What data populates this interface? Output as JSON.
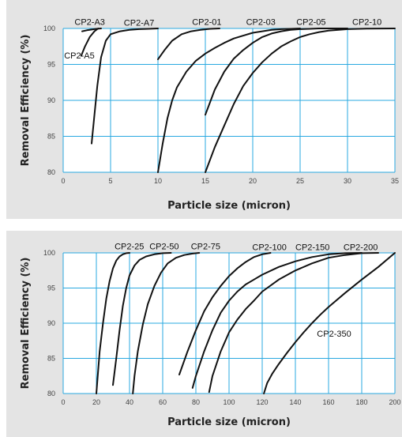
{
  "chart_data": [
    {
      "type": "line",
      "xlabel": "Particle size (micron)",
      "ylabel": "Removal Efficiency (%)",
      "xlim": [
        0,
        35
      ],
      "ylim": [
        80,
        100
      ],
      "xticks": [
        0,
        5,
        10,
        15,
        20,
        25,
        30,
        35
      ],
      "yticks": [
        80,
        85,
        90,
        95,
        100
      ],
      "grid": true,
      "series": [
        {
          "name": "CP2-A3",
          "x": [
            2,
            2.5,
            3,
            3.5,
            4
          ],
          "y": [
            99.6,
            99.75,
            99.85,
            99.95,
            100
          ]
        },
        {
          "name": "CP2-A5",
          "x": [
            1.9,
            2.3,
            2.8,
            3.3,
            3.7
          ],
          "y": [
            96.2,
            97.5,
            98.8,
            99.6,
            100
          ]
        },
        {
          "name": "CP2-A7",
          "x": [
            3,
            3.3,
            3.6,
            4,
            4.5,
            5,
            6,
            7,
            8,
            9,
            10
          ],
          "y": [
            84,
            88,
            92,
            96,
            98.3,
            99.2,
            99.6,
            99.8,
            99.9,
            99.95,
            100
          ]
        },
        {
          "name": "CP2-01",
          "x": [
            10,
            10.7,
            11.5,
            12.5,
            13.5,
            14.5,
            15.5,
            16.5
          ],
          "y": [
            95.7,
            97,
            98.3,
            99.2,
            99.6,
            99.8,
            99.95,
            100
          ]
        },
        {
          "name": "CP2-03",
          "x": [
            10,
            10.5,
            11,
            11.5,
            12,
            13,
            14,
            15,
            16,
            17,
            18,
            19,
            20,
            21,
            22,
            23,
            24,
            25
          ],
          "y": [
            80,
            84,
            87.5,
            90,
            91.8,
            94,
            95.5,
            96.5,
            97.3,
            98,
            98.6,
            99,
            99.4,
            99.6,
            99.8,
            99.9,
            99.95,
            100
          ]
        },
        {
          "name": "CP2-05",
          "x": [
            15,
            16,
            17,
            18,
            19,
            20,
            21,
            22,
            23,
            24,
            25,
            26,
            27,
            28,
            30
          ],
          "y": [
            88,
            91.5,
            94,
            95.8,
            97,
            98,
            98.8,
            99.3,
            99.6,
            99.8,
            99.9,
            99.95,
            100,
            100,
            100
          ]
        },
        {
          "name": "CP2-10",
          "x": [
            15,
            16,
            17,
            18,
            19,
            20,
            21,
            22,
            23,
            24,
            25,
            26,
            27,
            28,
            30,
            32,
            35
          ],
          "y": [
            80,
            83.5,
            86.5,
            89.5,
            92,
            93.8,
            95.3,
            96.5,
            97.5,
            98.2,
            98.8,
            99.2,
            99.5,
            99.7,
            99.9,
            99.97,
            100
          ]
        }
      ],
      "labels": [
        {
          "text": "CP2-A3",
          "x": 1.2,
          "y": 100.5
        },
        {
          "text": "CP2-A7",
          "x": 6.4,
          "y": 100.4
        },
        {
          "text": "CP2-A5",
          "x": 0.1,
          "y": 95.8
        },
        {
          "text": "CP2-01",
          "x": 13.6,
          "y": 100.5
        },
        {
          "text": "CP2-03",
          "x": 19.3,
          "y": 100.5
        },
        {
          "text": "CP2-05",
          "x": 24.6,
          "y": 100.5
        },
        {
          "text": "CP2-10",
          "x": 30.5,
          "y": 100.5
        }
      ]
    },
    {
      "type": "line",
      "xlabel": "Particle size (micron)",
      "ylabel": "Removal Efficiency (%)",
      "xlim": [
        0,
        200
      ],
      "ylim": [
        80,
        100
      ],
      "xticks": [
        0,
        20,
        40,
        60,
        80,
        100,
        120,
        140,
        160,
        180,
        200
      ],
      "yticks": [
        80,
        85,
        90,
        95,
        100
      ],
      "grid": true,
      "series": [
        {
          "name": "CP2-25",
          "x": [
            20,
            21,
            22,
            24,
            26,
            28,
            30,
            32,
            34,
            36,
            38,
            40
          ],
          "y": [
            80,
            83,
            86,
            90,
            93.5,
            96,
            97.8,
            98.9,
            99.5,
            99.8,
            99.95,
            100
          ]
        },
        {
          "name": "CP2-50",
          "x": [
            30,
            32,
            34,
            36,
            38,
            40,
            43,
            46,
            50,
            55,
            60,
            65
          ],
          "y": [
            81.2,
            85,
            89,
            92.5,
            95,
            96.8,
            98.2,
            99,
            99.5,
            99.8,
            99.95,
            100
          ]
        },
        {
          "name": "CP2-75",
          "x": [
            42,
            43,
            45,
            48,
            51,
            55,
            59,
            63,
            68,
            73,
            78,
            82
          ],
          "y": [
            80,
            82.5,
            86,
            89.8,
            92.7,
            95.3,
            97.2,
            98.5,
            99.3,
            99.7,
            99.9,
            100
          ]
        },
        {
          "name": "CP2-100",
          "x": [
            70,
            75,
            80,
            85,
            90,
            95,
            100,
            105,
            110,
            115,
            120,
            125
          ],
          "y": [
            82.7,
            86,
            89,
            91.7,
            93.7,
            95.3,
            96.7,
            97.8,
            98.7,
            99.4,
            99.8,
            100
          ]
        },
        {
          "name": "CP2-150",
          "x": [
            78,
            80,
            85,
            90,
            95,
            100,
            105,
            110,
            115,
            120,
            130,
            140,
            150,
            160,
            170,
            180
          ],
          "y": [
            80.8,
            82.5,
            86,
            89,
            91.5,
            93.2,
            94.5,
            95.5,
            96.2,
            96.9,
            98,
            98.8,
            99.4,
            99.8,
            99.95,
            100
          ]
        },
        {
          "name": "CP2-200",
          "x": [
            88,
            90,
            95,
            100,
            105,
            110,
            115,
            120,
            130,
            140,
            150,
            160,
            170,
            180,
            190
          ],
          "y": [
            80.2,
            82.5,
            86,
            88.7,
            90.5,
            92,
            93.2,
            94.5,
            96.2,
            97.5,
            98.5,
            99.3,
            99.7,
            99.95,
            100
          ]
        },
        {
          "name": "CP2-350",
          "x": [
            121,
            123,
            126,
            130,
            135,
            140,
            145,
            150,
            155,
            160,
            170,
            180,
            190,
            200
          ],
          "y": [
            80,
            81.5,
            82.8,
            84.2,
            85.8,
            87.3,
            88.7,
            90,
            91.2,
            92.3,
            94.3,
            96.2,
            98,
            100
          ]
        }
      ],
      "labels": [
        {
          "text": "CP2-25",
          "x": 31,
          "y": 100.5
        },
        {
          "text": "CP2-50",
          "x": 52,
          "y": 100.5
        },
        {
          "text": "CP2-75",
          "x": 77,
          "y": 100.5
        },
        {
          "text": "CP2-100",
          "x": 114,
          "y": 100.4
        },
        {
          "text": "CP2-150",
          "x": 140,
          "y": 100.4
        },
        {
          "text": "CP2-200",
          "x": 169,
          "y": 100.4
        },
        {
          "text": "CP2-350",
          "x": 153,
          "y": 88.1
        }
      ]
    }
  ]
}
